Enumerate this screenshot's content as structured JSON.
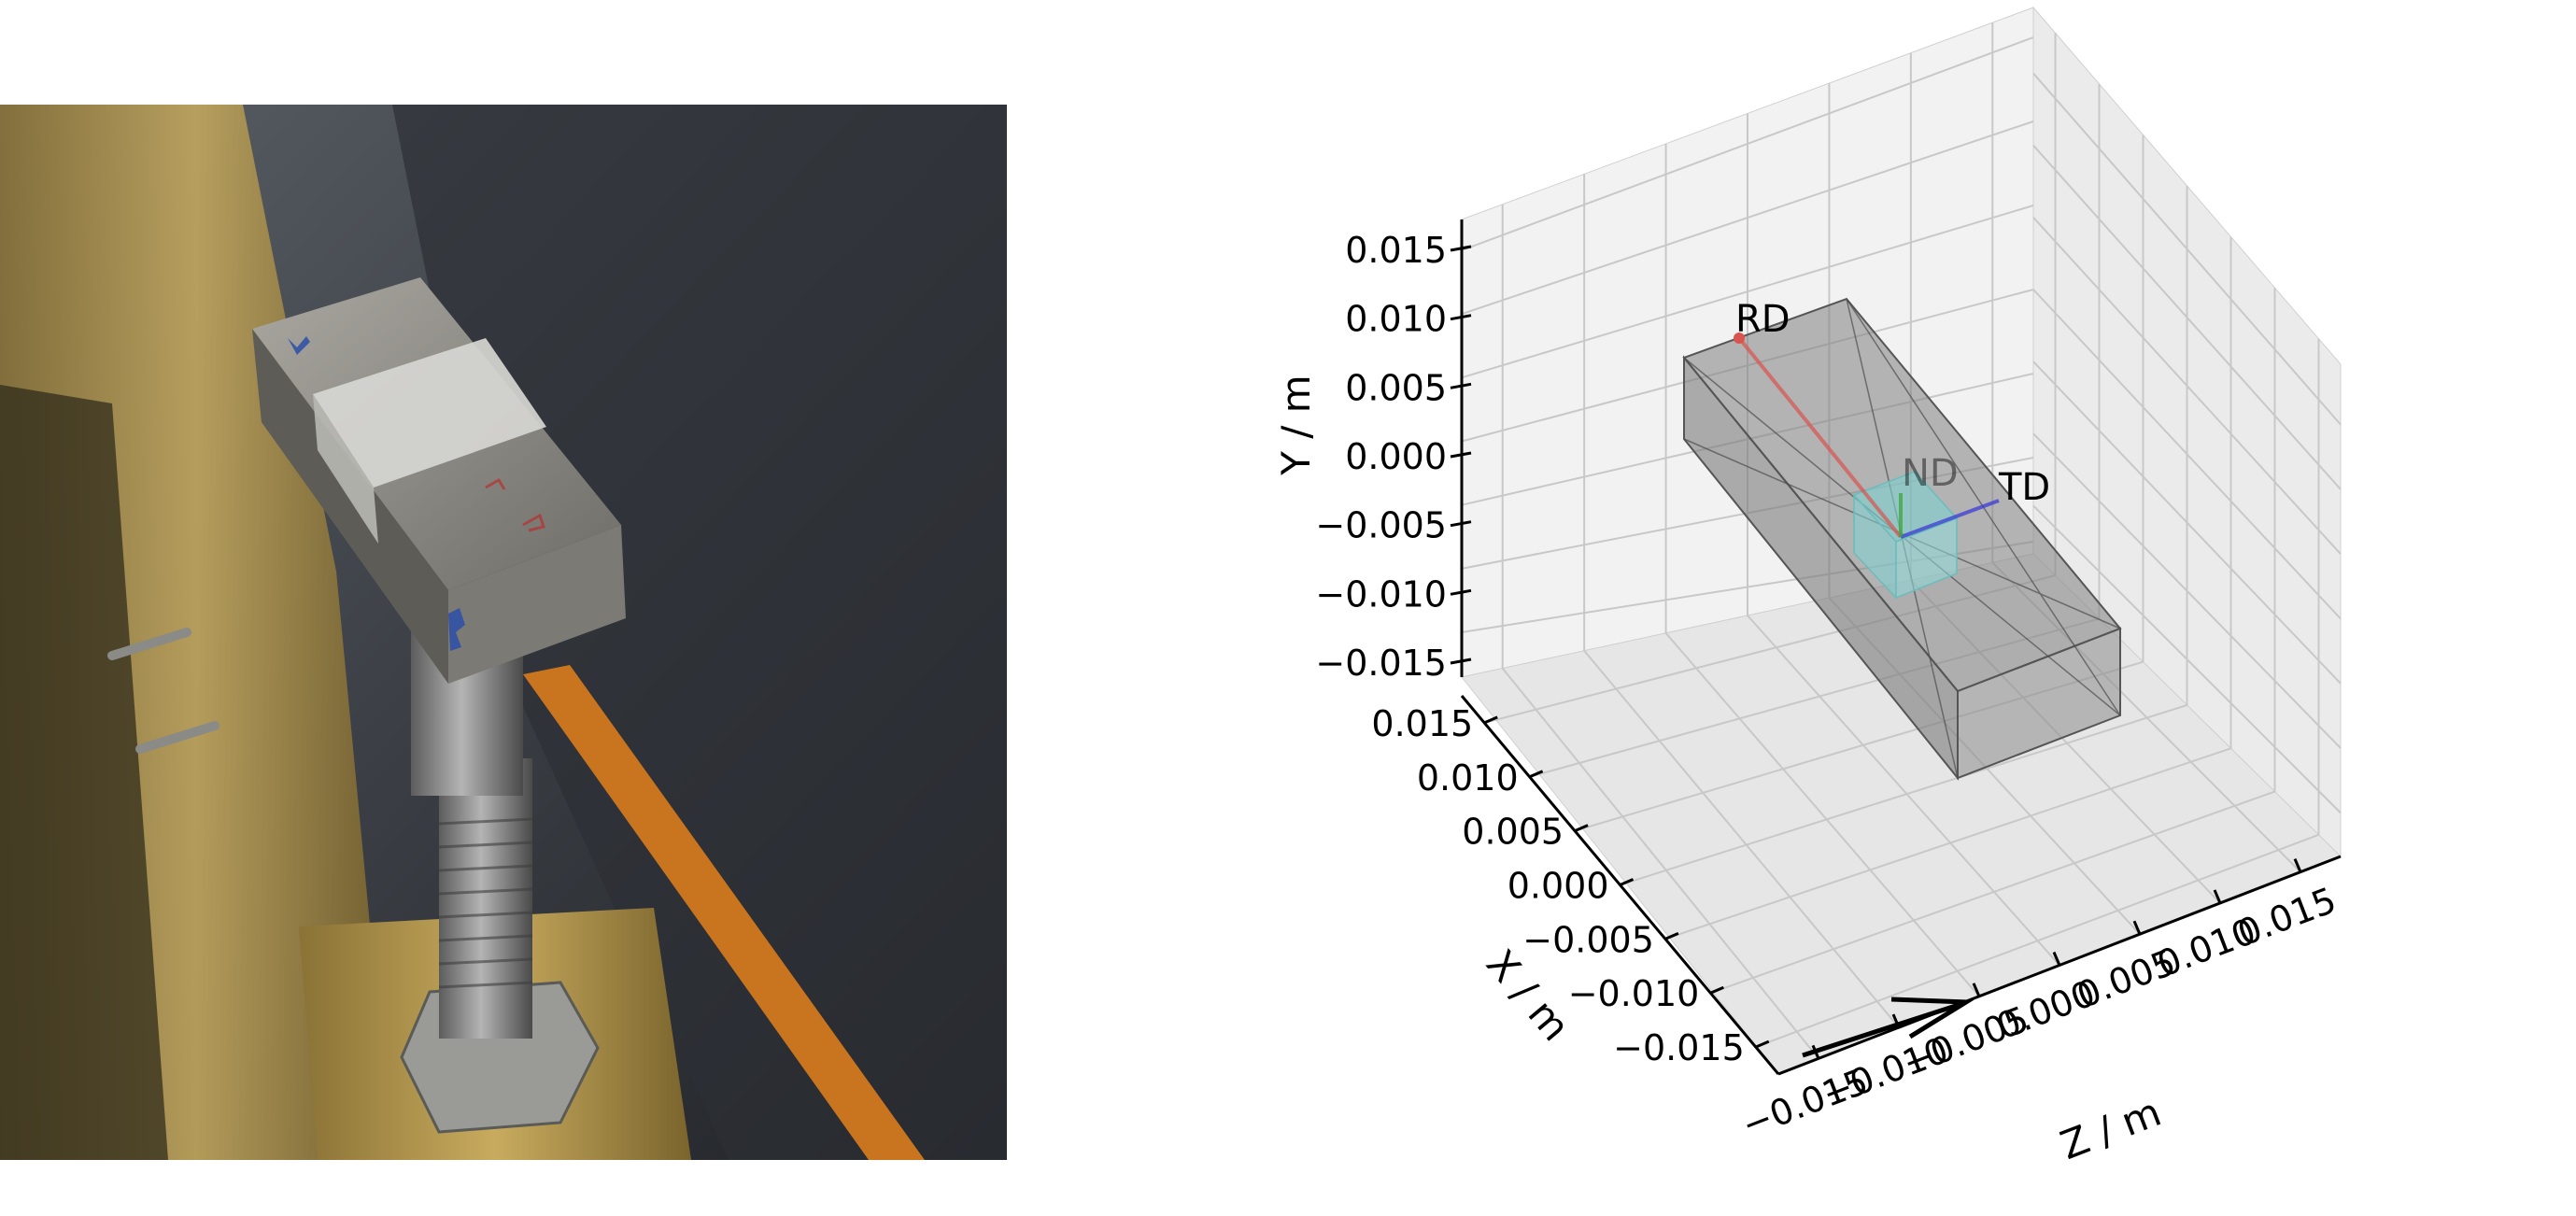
{
  "photo": {
    "description_name": "sample-mounted-on-holder-photo",
    "colors": {
      "block": "#8c8a84",
      "tape": "#d6d6d2",
      "brass": "#b79a4e",
      "background": "#3a3d42",
      "orange_bar": "#c9741f"
    }
  },
  "chart_data": {
    "type": "3d-box",
    "xlabel": "X / m",
    "ylabel": "Y / m",
    "zlabel": "Z / m",
    "x_ticks": [
      "0.015",
      "0.010",
      "0.005",
      "0.000",
      "−0.005",
      "−0.010",
      "−0.015"
    ],
    "y_ticks": [
      "0.015",
      "0.010",
      "0.005",
      "0.000",
      "−0.005",
      "−0.010",
      "−0.015"
    ],
    "z_ticks": [
      "−0.015",
      "−0.010",
      "−0.005",
      "0.000",
      "0.005",
      "0.010",
      "0.015"
    ],
    "xlim": [
      -0.015,
      0.015
    ],
    "ylim": [
      -0.015,
      0.015
    ],
    "zlim": [
      -0.015,
      0.015
    ],
    "grid": true,
    "sample_box": {
      "color": "#808080",
      "opacity": 0.45
    },
    "gauge_volume": {
      "color": "#7fd1d1",
      "opacity": 0.5
    },
    "vectors": [
      {
        "label": "RD",
        "color": "#d9534f"
      },
      {
        "label": "TD",
        "color": "#3b3bd6"
      },
      {
        "label": "ND",
        "color": "#3aa63a"
      }
    ],
    "beam_arrow": {
      "color": "#000000"
    }
  }
}
